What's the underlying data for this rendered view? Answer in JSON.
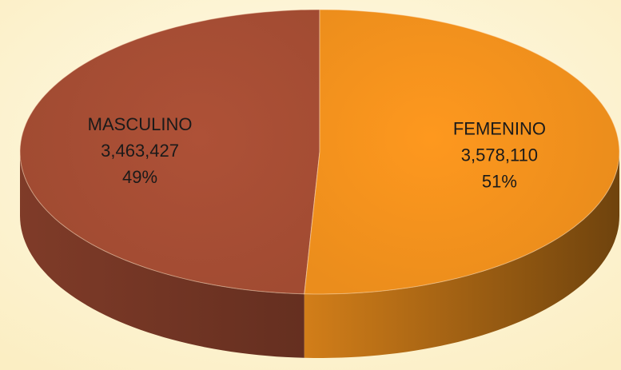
{
  "chart_data": {
    "type": "pie3d",
    "categories": [
      "MASCULINO",
      "FEMENINO"
    ],
    "values": [
      3463427,
      3578110
    ],
    "value_labels": [
      "3,463,427",
      "3,578,110"
    ],
    "percent_labels": [
      "49%",
      "51%"
    ],
    "colors": [
      "#a94f35",
      "#f7941d"
    ]
  }
}
